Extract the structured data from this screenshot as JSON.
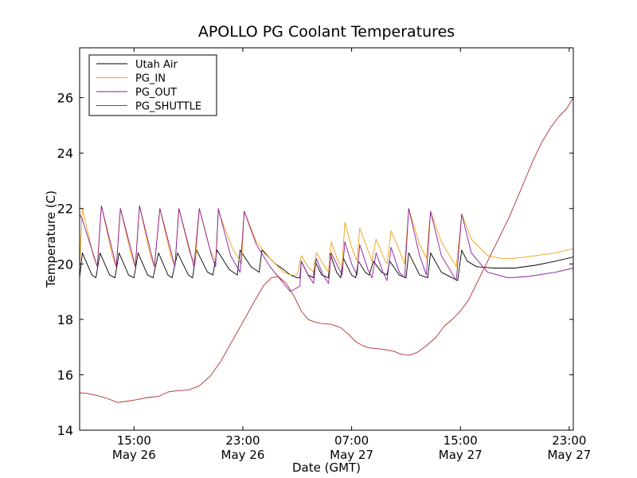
{
  "chart_data": {
    "type": "line",
    "title": "APOLLO PG Coolant Temperatures",
    "xlabel": "Date (GMT)",
    "ylabel": "Temperature (C)",
    "xlim": [
      11.0,
      47.3
    ],
    "ylim": [
      14,
      27.8
    ],
    "y_ticks": [
      14,
      16,
      18,
      20,
      22,
      24,
      26
    ],
    "x_ticks": [
      {
        "value": 15,
        "time": "15:00",
        "date": "May 26"
      },
      {
        "value": 23,
        "time": "23:00",
        "date": "May 26"
      },
      {
        "value": 31,
        "time": "07:00",
        "date": "May 27"
      },
      {
        "value": 39,
        "time": "15:00",
        "date": "May 27"
      },
      {
        "value": 47,
        "time": "23:00",
        "date": "May 27"
      }
    ],
    "legend_position": "top-left",
    "series": [
      {
        "name": "Utah Air",
        "color": "#000000",
        "points": [
          [
            11.0,
            19.5
          ],
          [
            11.2,
            20.4
          ],
          [
            11.9,
            19.6
          ],
          [
            12.2,
            19.5
          ],
          [
            12.5,
            20.4
          ],
          [
            13.2,
            19.6
          ],
          [
            13.6,
            19.5
          ],
          [
            13.9,
            20.4
          ],
          [
            14.6,
            19.6
          ],
          [
            15.0,
            19.5
          ],
          [
            15.3,
            20.4
          ],
          [
            16.0,
            19.6
          ],
          [
            16.4,
            19.5
          ],
          [
            16.8,
            20.4
          ],
          [
            17.5,
            19.6
          ],
          [
            17.8,
            19.5
          ],
          [
            18.2,
            20.4
          ],
          [
            19.0,
            19.6
          ],
          [
            19.3,
            19.5
          ],
          [
            19.6,
            20.5
          ],
          [
            20.4,
            19.7
          ],
          [
            20.8,
            19.6
          ],
          [
            21.1,
            20.5
          ],
          [
            22.0,
            19.8
          ],
          [
            22.6,
            19.6
          ],
          [
            22.8,
            20.5
          ],
          [
            23.6,
            19.9
          ],
          [
            24.2,
            19.7
          ],
          [
            24.4,
            20.5
          ],
          [
            25.4,
            20.0
          ],
          [
            26.0,
            19.8
          ],
          [
            26.5,
            19.6
          ],
          [
            27.0,
            19.5
          ],
          [
            27.2,
            19.5
          ],
          [
            27.3,
            20.1
          ],
          [
            27.8,
            19.6
          ],
          [
            28.2,
            19.5
          ],
          [
            28.3,
            20.1
          ],
          [
            28.8,
            19.6
          ],
          [
            29.3,
            19.5
          ],
          [
            29.4,
            20.4
          ],
          [
            29.9,
            19.7
          ],
          [
            30.2,
            19.5
          ],
          [
            30.4,
            20.2
          ],
          [
            31.0,
            19.6
          ],
          [
            31.3,
            19.5
          ],
          [
            31.5,
            20.1
          ],
          [
            32.0,
            19.7
          ],
          [
            32.3,
            19.6
          ],
          [
            32.6,
            20.1
          ],
          [
            33.2,
            19.7
          ],
          [
            33.6,
            19.6
          ],
          [
            33.8,
            20.1
          ],
          [
            34.5,
            19.6
          ],
          [
            35.0,
            19.5
          ],
          [
            35.2,
            20.4
          ],
          [
            36.0,
            19.6
          ],
          [
            36.6,
            19.5
          ],
          [
            36.8,
            20.4
          ],
          [
            37.6,
            19.7
          ],
          [
            38.8,
            19.4
          ],
          [
            39.1,
            20.5
          ],
          [
            39.5,
            20.1
          ],
          [
            40.2,
            19.9
          ],
          [
            41.5,
            19.85
          ],
          [
            43.0,
            19.85
          ],
          [
            44.5,
            19.95
          ],
          [
            46.0,
            20.1
          ],
          [
            47.3,
            20.25
          ]
        ]
      },
      {
        "name": "PG_IN",
        "color": "#f0a010",
        "points": [
          [
            11.0,
            19.9
          ],
          [
            11.2,
            22.0
          ],
          [
            12.0,
            20.3
          ],
          [
            12.3,
            19.9
          ],
          [
            12.6,
            22.1
          ],
          [
            13.4,
            20.3
          ],
          [
            13.7,
            19.9
          ],
          [
            14.0,
            22.0
          ],
          [
            14.8,
            20.3
          ],
          [
            15.1,
            19.9
          ],
          [
            15.4,
            22.1
          ],
          [
            16.2,
            20.3
          ],
          [
            16.5,
            19.9
          ],
          [
            16.9,
            22.0
          ],
          [
            17.7,
            20.3
          ],
          [
            18.0,
            19.9
          ],
          [
            18.3,
            22.0
          ],
          [
            19.1,
            20.4
          ],
          [
            19.5,
            20.0
          ],
          [
            19.8,
            22.0
          ],
          [
            20.6,
            20.5
          ],
          [
            21.0,
            20.1
          ],
          [
            21.2,
            21.9
          ],
          [
            22.2,
            20.6
          ],
          [
            22.9,
            20.0
          ],
          [
            23.1,
            21.9
          ],
          [
            24.0,
            20.8
          ],
          [
            25.0,
            20.2
          ],
          [
            26.0,
            19.7
          ],
          [
            26.5,
            19.6
          ],
          [
            27.0,
            19.6
          ],
          [
            27.3,
            20.3
          ],
          [
            27.8,
            19.9
          ],
          [
            28.2,
            19.7
          ],
          [
            28.4,
            20.4
          ],
          [
            28.9,
            20.0
          ],
          [
            29.3,
            19.7
          ],
          [
            29.5,
            20.8
          ],
          [
            30.0,
            20.1
          ],
          [
            30.3,
            19.9
          ],
          [
            30.5,
            21.5
          ],
          [
            31.0,
            20.6
          ],
          [
            31.4,
            20.1
          ],
          [
            31.6,
            21.3
          ],
          [
            32.2,
            20.5
          ],
          [
            32.5,
            20.1
          ],
          [
            32.8,
            20.9
          ],
          [
            33.3,
            20.3
          ],
          [
            33.6,
            20.0
          ],
          [
            33.9,
            21.2
          ],
          [
            34.5,
            20.5
          ],
          [
            34.9,
            20.0
          ],
          [
            35.2,
            22.0
          ],
          [
            36.0,
            20.7
          ],
          [
            36.5,
            20.2
          ],
          [
            36.8,
            21.9
          ],
          [
            37.6,
            20.8
          ],
          [
            38.7,
            19.9
          ],
          [
            39.1,
            21.8
          ],
          [
            39.8,
            20.9
          ],
          [
            41.0,
            20.3
          ],
          [
            42.0,
            20.2
          ],
          [
            43.0,
            20.2
          ],
          [
            44.5,
            20.3
          ],
          [
            46.0,
            20.4
          ],
          [
            47.3,
            20.55
          ]
        ]
      },
      {
        "name": "PG_OUT",
        "color": "#8b1a9b",
        "points": [
          [
            11.0,
            21.8
          ],
          [
            11.2,
            21.6
          ],
          [
            12.1,
            20.2
          ],
          [
            12.3,
            19.9
          ],
          [
            12.6,
            22.1
          ],
          [
            13.5,
            20.3
          ],
          [
            13.7,
            19.9
          ],
          [
            14.0,
            22.0
          ],
          [
            14.9,
            20.3
          ],
          [
            15.1,
            19.9
          ],
          [
            15.4,
            22.1
          ],
          [
            16.3,
            20.3
          ],
          [
            16.5,
            19.9
          ],
          [
            16.9,
            22.0
          ],
          [
            17.8,
            20.3
          ],
          [
            18.0,
            19.9
          ],
          [
            18.3,
            22.0
          ],
          [
            19.2,
            20.3
          ],
          [
            19.4,
            19.9
          ],
          [
            19.8,
            22.0
          ],
          [
            20.7,
            20.3
          ],
          [
            21.0,
            19.9
          ],
          [
            21.2,
            22.0
          ],
          [
            22.1,
            20.3
          ],
          [
            22.8,
            19.7
          ],
          [
            23.1,
            21.9
          ],
          [
            24.0,
            20.7
          ],
          [
            25.0,
            19.9
          ],
          [
            26.0,
            19.3
          ],
          [
            26.5,
            19.0
          ],
          [
            27.2,
            19.2
          ],
          [
            27.3,
            20.1
          ],
          [
            27.8,
            19.6
          ],
          [
            28.2,
            19.3
          ],
          [
            28.4,
            20.2
          ],
          [
            28.9,
            19.6
          ],
          [
            29.3,
            19.3
          ],
          [
            29.5,
            20.4
          ],
          [
            30.1,
            19.8
          ],
          [
            30.3,
            19.6
          ],
          [
            30.5,
            20.8
          ],
          [
            31.0,
            20.0
          ],
          [
            31.4,
            19.6
          ],
          [
            31.6,
            20.7
          ],
          [
            32.2,
            19.8
          ],
          [
            32.5,
            19.5
          ],
          [
            32.8,
            20.4
          ],
          [
            33.3,
            19.7
          ],
          [
            33.6,
            19.4
          ],
          [
            33.9,
            20.6
          ],
          [
            34.5,
            19.7
          ],
          [
            34.9,
            19.5
          ],
          [
            35.2,
            22.0
          ],
          [
            36.0,
            20.3
          ],
          [
            36.5,
            19.6
          ],
          [
            36.8,
            21.9
          ],
          [
            37.6,
            20.3
          ],
          [
            38.7,
            19.4
          ],
          [
            39.1,
            21.8
          ],
          [
            39.8,
            20.4
          ],
          [
            41.0,
            19.7
          ],
          [
            42.5,
            19.5
          ],
          [
            44.0,
            19.55
          ],
          [
            46.0,
            19.7
          ],
          [
            47.3,
            19.85
          ]
        ]
      },
      {
        "name": "PG_SHUTTLE",
        "color": "#b03030",
        "points": [
          [
            11.0,
            15.35
          ],
          [
            11.5,
            15.33
          ],
          [
            12.3,
            15.25
          ],
          [
            13.0,
            15.15
          ],
          [
            13.8,
            15.0
          ],
          [
            14.5,
            15.05
          ],
          [
            15.2,
            15.1
          ],
          [
            16.0,
            15.18
          ],
          [
            16.8,
            15.22
          ],
          [
            17.5,
            15.38
          ],
          [
            18.2,
            15.43
          ],
          [
            19.0,
            15.45
          ],
          [
            19.8,
            15.6
          ],
          [
            20.6,
            15.95
          ],
          [
            21.4,
            16.5
          ],
          [
            22.2,
            17.2
          ],
          [
            23.0,
            17.9
          ],
          [
            23.8,
            18.6
          ],
          [
            24.5,
            19.2
          ],
          [
            25.1,
            19.5
          ],
          [
            25.6,
            19.55
          ],
          [
            26.2,
            19.3
          ],
          [
            26.8,
            18.8
          ],
          [
            27.3,
            18.3
          ],
          [
            27.8,
            18.0
          ],
          [
            28.3,
            17.9
          ],
          [
            28.8,
            17.85
          ],
          [
            29.5,
            17.82
          ],
          [
            30.2,
            17.7
          ],
          [
            30.8,
            17.45
          ],
          [
            31.3,
            17.2
          ],
          [
            31.8,
            17.05
          ],
          [
            32.3,
            16.97
          ],
          [
            32.8,
            16.95
          ],
          [
            33.5,
            16.9
          ],
          [
            34.1,
            16.85
          ],
          [
            34.6,
            16.75
          ],
          [
            35.2,
            16.7
          ],
          [
            35.8,
            16.8
          ],
          [
            36.5,
            17.05
          ],
          [
            37.2,
            17.35
          ],
          [
            37.8,
            17.75
          ],
          [
            38.4,
            18.0
          ],
          [
            39.0,
            18.3
          ],
          [
            39.6,
            18.7
          ],
          [
            40.2,
            19.3
          ],
          [
            40.8,
            19.9
          ],
          [
            41.4,
            20.5
          ],
          [
            42.0,
            21.1
          ],
          [
            42.6,
            21.7
          ],
          [
            43.2,
            22.4
          ],
          [
            43.8,
            23.1
          ],
          [
            44.4,
            23.8
          ],
          [
            45.0,
            24.4
          ],
          [
            45.6,
            24.9
          ],
          [
            46.2,
            25.3
          ],
          [
            46.8,
            25.6
          ],
          [
            47.3,
            26.0
          ]
        ]
      }
    ]
  }
}
